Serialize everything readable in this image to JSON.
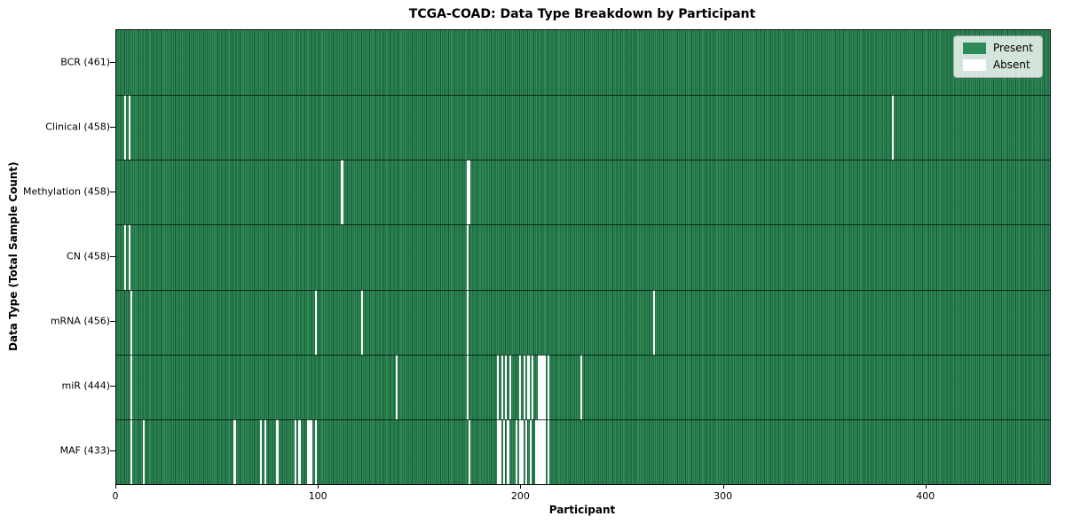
{
  "title": "TCGA-COAD: Data Type Breakdown by Participant",
  "xlabel": "Participant",
  "ylabel": "Data Type (Total Sample Count)",
  "legend": {
    "present_label": "Present",
    "absent_label": "Absent"
  },
  "colors": {
    "present": "#2e8b57",
    "absent": "#ffffff",
    "bar_edge": "#16482d",
    "legend_bg": "rgba(255,255,255,0.8)"
  },
  "chart_data": {
    "type": "heatmap",
    "title": "TCGA-COAD: Data Type Breakdown by Participant",
    "xlabel": "Participant",
    "ylabel": "Data Type (Total Sample Count)",
    "legend_entries": [
      "Present",
      "Absent"
    ],
    "n_participants": 461,
    "x_ticks": [
      0,
      100,
      200,
      300,
      400
    ],
    "xlim": [
      0,
      461
    ],
    "grid": false,
    "legend_position": "upper-right",
    "rows": [
      {
        "label": "BCR (461)",
        "data_type": "BCR",
        "count": 461,
        "absent_participants": []
      },
      {
        "label": "Clinical (458)",
        "data_type": "Clinical",
        "count": 458,
        "absent_participants": [
          4,
          6,
          383
        ]
      },
      {
        "label": "Methylation (458)",
        "data_type": "Methylation",
        "count": 458,
        "absent_participants": [
          111,
          173,
          174
        ]
      },
      {
        "label": "CN (458)",
        "data_type": "CN",
        "count": 458,
        "absent_participants": [
          4,
          6,
          173
        ]
      },
      {
        "label": "mRNA (456)",
        "data_type": "mRNA",
        "count": 456,
        "absent_participants": [
          7,
          98,
          121,
          173,
          265
        ]
      },
      {
        "label": "miR (444)",
        "data_type": "miR",
        "count": 444,
        "absent_participants": [
          7,
          138,
          173,
          188,
          190,
          192,
          194,
          199,
          201,
          203,
          205,
          208,
          209,
          210,
          211,
          213,
          229
        ]
      },
      {
        "label": "MAF (433)",
        "data_type": "MAF",
        "count": 433,
        "absent_participants": [
          7,
          13,
          58,
          71,
          73,
          79,
          88,
          90,
          94,
          95,
          96,
          98,
          174,
          188,
          189,
          191,
          193,
          197,
          199,
          200,
          202,
          204,
          207,
          208,
          209,
          210,
          211,
          213
        ]
      }
    ]
  }
}
